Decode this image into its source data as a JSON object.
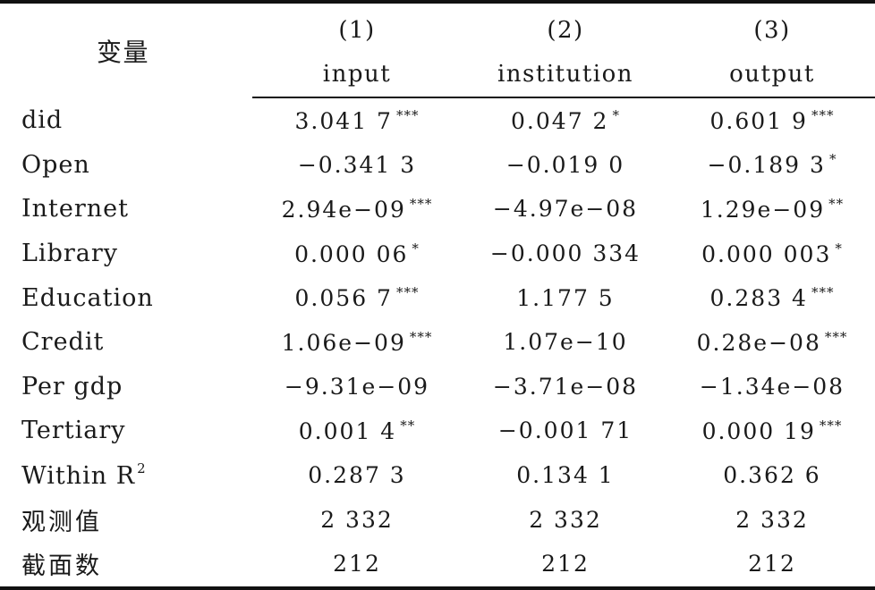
{
  "header": {
    "variable_label": "变量",
    "columns": [
      {
        "number": "(1)",
        "name": "input"
      },
      {
        "number": "(2)",
        "name": "institution"
      },
      {
        "number": "(3)",
        "name": "output"
      }
    ]
  },
  "rows": [
    {
      "label": "did",
      "cells": [
        {
          "value": "3.041 7",
          "stars": "***"
        },
        {
          "value": "0.047 2",
          "stars": "*"
        },
        {
          "value": "0.601 9",
          "stars": "***"
        }
      ]
    },
    {
      "label": "Open",
      "cells": [
        {
          "value": "−0.341 3",
          "stars": ""
        },
        {
          "value": "−0.019 0",
          "stars": ""
        },
        {
          "value": "−0.189 3",
          "stars": "*"
        }
      ]
    },
    {
      "label": "Internet",
      "cells": [
        {
          "value": "2.94e−09",
          "stars": "***"
        },
        {
          "value": "−4.97e−08",
          "stars": ""
        },
        {
          "value": "1.29e−09",
          "stars": "**"
        }
      ]
    },
    {
      "label": "Library",
      "cells": [
        {
          "value": "0.000 06",
          "stars": "*"
        },
        {
          "value": "−0.000 334",
          "stars": ""
        },
        {
          "value": "0.000 003",
          "stars": "*"
        }
      ]
    },
    {
      "label": "Education",
      "cells": [
        {
          "value": "0.056 7",
          "stars": "***"
        },
        {
          "value": "1.177 5",
          "stars": ""
        },
        {
          "value": "0.283 4",
          "stars": "***"
        }
      ]
    },
    {
      "label": "Credit",
      "cells": [
        {
          "value": "1.06e−09",
          "stars": "***"
        },
        {
          "value": "1.07e−10",
          "stars": ""
        },
        {
          "value": "0.28e−08",
          "stars": "***"
        }
      ]
    },
    {
      "label": "Per gdp",
      "cells": [
        {
          "value": "−9.31e−09",
          "stars": ""
        },
        {
          "value": "−3.71e−08",
          "stars": ""
        },
        {
          "value": "−1.34e−08",
          "stars": ""
        }
      ]
    },
    {
      "label": "Tertiary",
      "cells": [
        {
          "value": "0.001 4",
          "stars": "**"
        },
        {
          "value": "−0.001 71",
          "stars": ""
        },
        {
          "value": "0.000 19",
          "stars": "***"
        }
      ]
    }
  ],
  "within_r2": {
    "label": "Within R",
    "superscript": "2",
    "cells": [
      "0.287 3",
      "0.134 1",
      "0.362 6"
    ]
  },
  "observations": {
    "label": "观测值",
    "cells": [
      "2 332",
      "2 332",
      "2 332"
    ]
  },
  "cross_sections": {
    "label": "截面数",
    "cells": [
      "212",
      "212",
      "212"
    ]
  }
}
